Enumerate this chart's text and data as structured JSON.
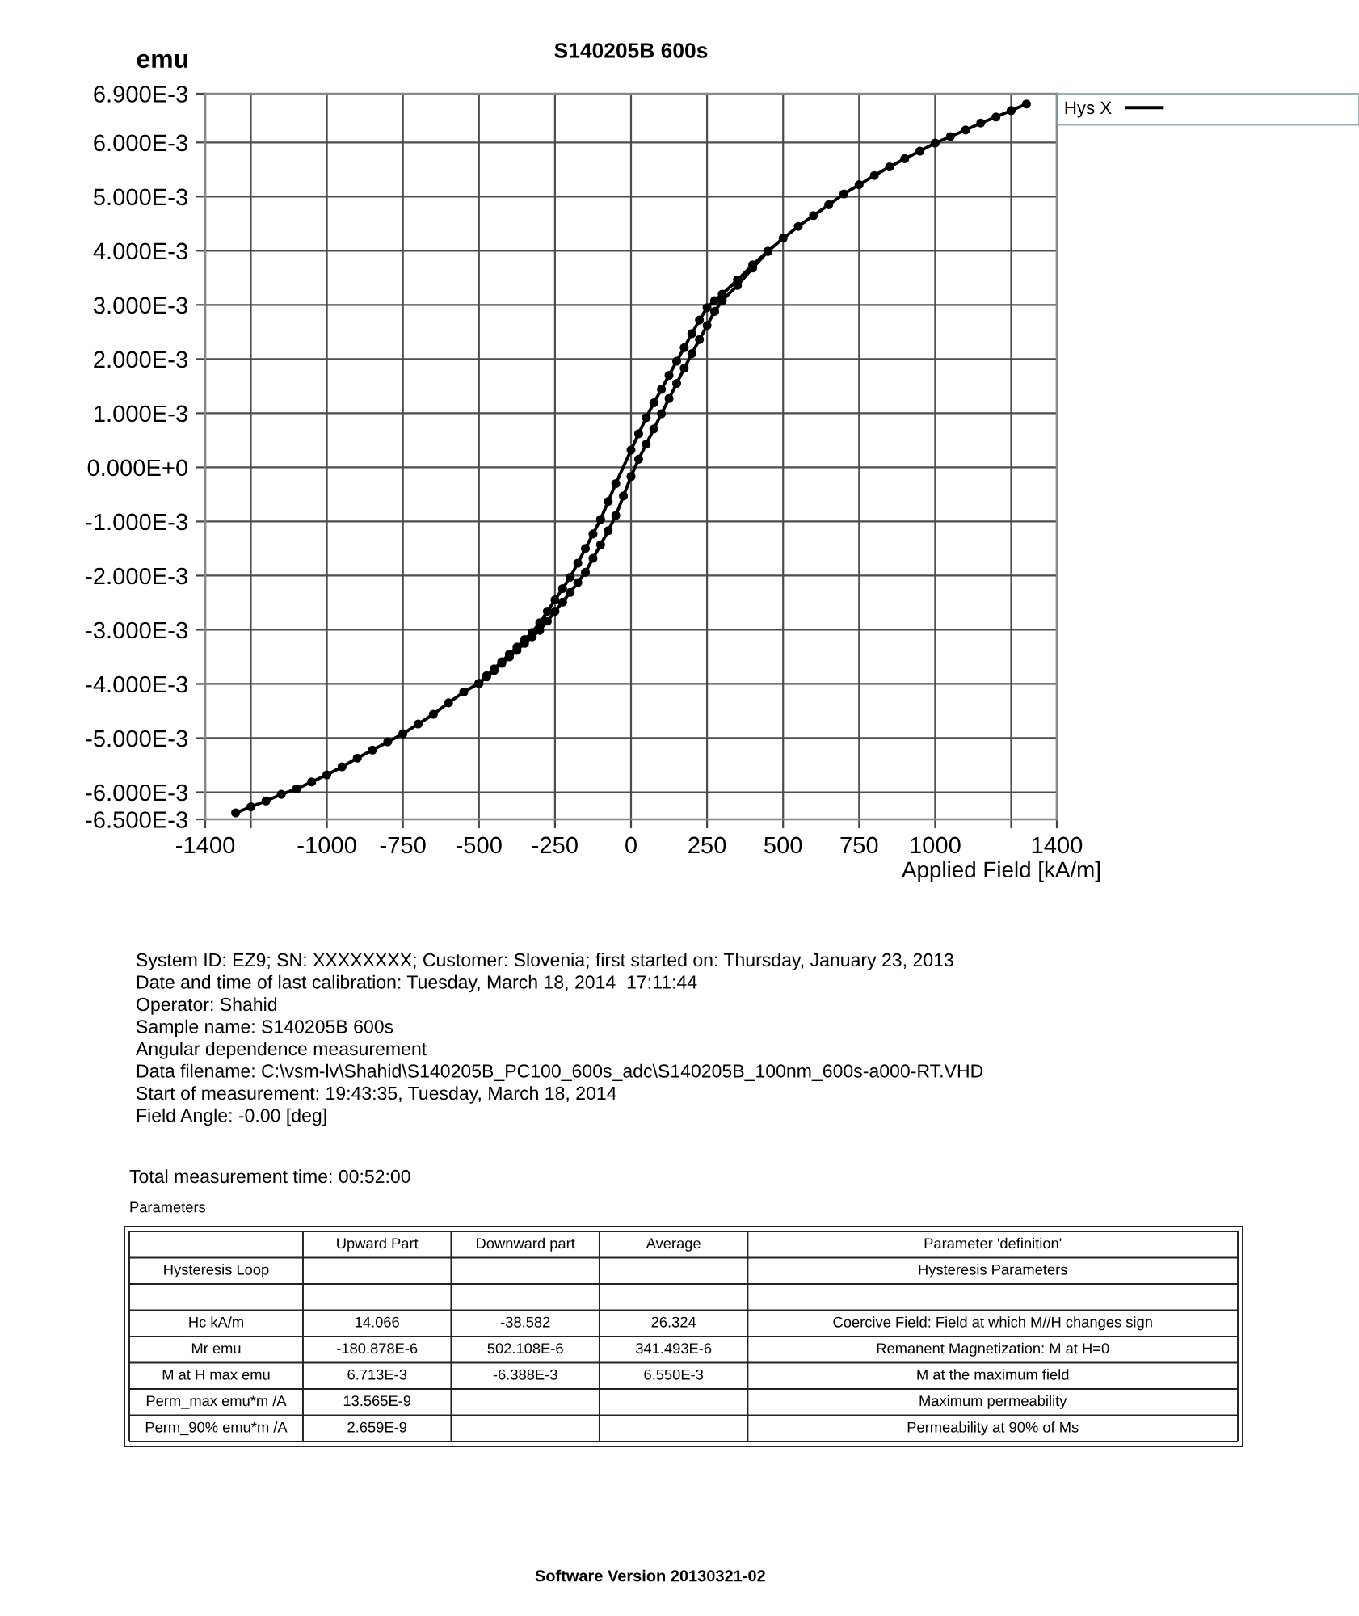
{
  "chart_data": [
    {
      "type": "line",
      "title": "S140205B 600s",
      "xlabel": "Applied Field [kA/m]",
      "ylabel": "emu",
      "xlim": [
        -1400,
        1400
      ],
      "ylim": [
        -0.0065,
        0.0069
      ],
      "xticks": [
        -1400,
        {
          "value": -1250,
          "label": null
        },
        -1000,
        -750,
        -500,
        -250,
        0,
        250,
        500,
        750,
        1000,
        {
          "value": 1250,
          "label": null
        },
        1400
      ],
      "yticks": [
        {
          "value": 0.0069,
          "label": "6.900E-3"
        },
        {
          "value": 0.006,
          "label": "6.000E-3"
        },
        {
          "value": 0.005,
          "label": "5.000E-3"
        },
        {
          "value": 0.004,
          "label": "4.000E-3"
        },
        {
          "value": 0.003,
          "label": "3.000E-3"
        },
        {
          "value": 0.002,
          "label": "2.000E-3"
        },
        {
          "value": 0.001,
          "label": "1.000E-3"
        },
        {
          "value": 0,
          "label": "0.000E+0"
        },
        {
          "value": -0.001,
          "label": "-1.000E-3"
        },
        {
          "value": -0.002,
          "label": "-2.000E-3"
        },
        {
          "value": -0.003,
          "label": "-3.000E-3"
        },
        {
          "value": -0.004,
          "label": "-4.000E-3"
        },
        {
          "value": -0.005,
          "label": "-5.000E-3"
        },
        {
          "value": -0.006,
          "label": "-6.000E-3"
        },
        {
          "value": -0.0065,
          "label": "-6.500E-3"
        }
      ],
      "grid": true,
      "legend": "top right",
      "marker": "circle",
      "line_style": "solid",
      "series": [
        {
          "name": "Hys X",
          "color": "#000000",
          "x": [
            -1300,
            -1250,
            -1200,
            -1150,
            -1100,
            -1050,
            -1000,
            -950,
            -900,
            -850,
            -800,
            -750,
            -700,
            -650,
            -600,
            -550,
            -500,
            -475,
            -450,
            -425,
            -400,
            -375,
            -350,
            -325,
            -300,
            -275,
            -250,
            -225,
            -200,
            -175,
            -150,
            -125,
            -100,
            -75,
            -50,
            0,
            25,
            50,
            75,
            100,
            125,
            150,
            175,
            200,
            225,
            250,
            275,
            300,
            350,
            400,
            450,
            500,
            550,
            600,
            650,
            700,
            750,
            800,
            850,
            900,
            950,
            1000,
            1050,
            1100,
            1150,
            1200,
            1250,
            1300
          ],
          "values": [
            -0.00638,
            -0.00627,
            -0.00616,
            -0.00604,
            -0.00594,
            -0.00581,
            -0.00568,
            -0.00553,
            -0.00537,
            -0.00522,
            -0.00507,
            -0.00492,
            -0.00474,
            -0.00456,
            -0.00435,
            -0.00415,
            -0.00399,
            -0.00385,
            -0.00372,
            -0.00359,
            -0.00345,
            -0.00332,
            -0.00318,
            -0.00305,
            -0.00287,
            -0.00266,
            -0.00245,
            -0.00224,
            -0.00203,
            -0.00177,
            -0.0015,
            -0.00123,
            -0.00096,
            -0.00063,
            -0.0003,
            0.00032,
            0.00062,
            0.00092,
            0.00119,
            0.00144,
            0.0017,
            0.00196,
            0.00221,
            0.00247,
            0.00272,
            0.00295,
            0.00308,
            0.0032,
            0.00346,
            0.00374,
            0.00399,
            0.00423,
            0.00445,
            0.00465,
            0.00485,
            0.00505,
            0.00522,
            0.00539,
            0.00555,
            0.0057,
            0.00584,
            0.00599,
            0.00611,
            0.00623,
            0.00636,
            0.00647,
            0.00659,
            0.00671
          ]
        },
        {
          "color": "#000000",
          "x": [
            -500,
            -475,
            -450,
            -425,
            -400,
            -375,
            -350,
            -325,
            -300,
            -275,
            -250,
            -225,
            -200,
            -175,
            -150,
            -125,
            -100,
            -75,
            -50,
            -25,
            0,
            25,
            50,
            75,
            100,
            125,
            150,
            175,
            200,
            225,
            250,
            275,
            300,
            350,
            400,
            450
          ],
          "values": [
            -0.00399,
            -0.00387,
            -0.00375,
            -0.00362,
            -0.0035,
            -0.00338,
            -0.00325,
            -0.00313,
            -0.00301,
            -0.00284,
            -0.00266,
            -0.00249,
            -0.00231,
            -0.00213,
            -0.00194,
            -0.00168,
            -0.00143,
            -0.00117,
            -0.00089,
            -0.00053,
            -0.00017,
            0.00015,
            0.00043,
            0.00071,
            0.00099,
            0.00127,
            0.00155,
            0.00183,
            0.0021,
            0.00236,
            0.00262,
            0.00288,
            0.00308,
            0.00336,
            0.00368,
            0.00399
          ]
        }
      ],
      "annotations": [
        "System ID: EZ9; SN: XXXXXXXX; Customer: Slovenia; first started on: Thursday, January 23, 2013",
        "Date and time of last calibration: Tuesday, March 18, 2014  17:11:44",
        "Operator: Shahid",
        "Sample name: S140205B 600s",
        "Angular dependence measurement",
        "Data filename: C:\\vsm-lv\\Shahid\\S140205B_PC100_600s_adc\\S140205B_100nm_600s-a000-RT.VHD",
        "Start of measurement: 19:43:35, Tuesday, March 18, 2014",
        "Field Angle: -0.00 [deg]"
      ]
    },
    {
      "type": "other",
      "title": "Parameters",
      "categories": [
        "Upward Part",
        "Downward part",
        "Average",
        "Parameter 'definition'"
      ],
      "y_categories": [
        "Hysteresis Loop",
        null,
        "Hc kA/m",
        "Mr emu",
        "M at H max emu",
        "Perm_max emu*m /A",
        "Perm_90% emu*m /A"
      ],
      "cell_labels": [
        [
          null,
          null,
          null,
          "Hysteresis Parameters"
        ],
        [
          null,
          null,
          null,
          null
        ],
        [
          "14.066",
          "-38.582",
          "26.324",
          "Coercive Field: Field at which M//H changes sign"
        ],
        [
          "-180.878E-6",
          "502.108E-6",
          "341.493E-6",
          "Remanent Magnetization: M at H=0"
        ],
        [
          "6.713E-3",
          "-6.388E-3",
          "6.550E-3",
          "M at the maximum field"
        ],
        [
          "13.565E-9",
          null,
          null,
          "Maximum permeability"
        ],
        [
          "2.659E-9",
          null,
          null,
          "Permeability at 90% of Ms"
        ]
      ],
      "annotations": [
        "Total measurement time: 00:52:00",
        "Software Version 20130321-02"
      ]
    }
  ]
}
